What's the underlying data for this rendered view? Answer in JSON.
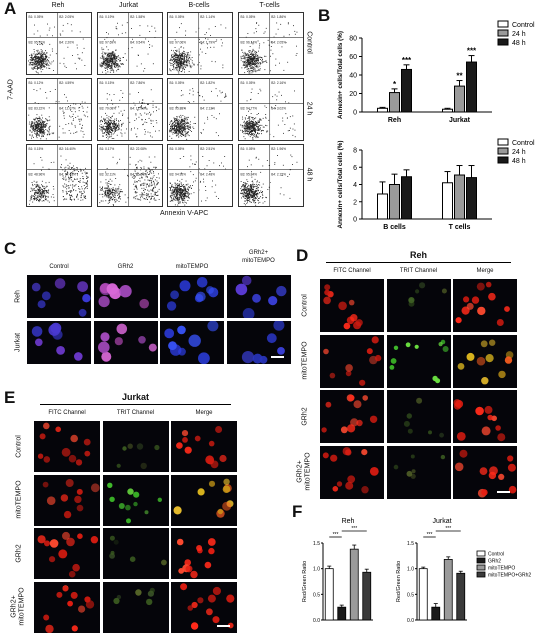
{
  "panel_letters": {
    "A": "A",
    "B": "B",
    "C": "C",
    "D": "D",
    "E": "E",
    "F": "F"
  },
  "panel_a": {
    "columns": [
      "Reh",
      "Jurkat",
      "B-cells",
      "T-cells"
    ],
    "rows": [
      "Control",
      "24 h",
      "48 h"
    ],
    "y_axis_label": "7-AAD",
    "x_axis_label": "Annexin V-APC",
    "quadrants": [
      [
        [
          "B1: 0.05%",
          "B2: 2.05%",
          "B3: 95.70%",
          "B4: 2.20%"
        ],
        [
          "B1: 0.19%",
          "B2: 1.58%",
          "B3: 97.69%",
          "B4: 0.54%"
        ],
        [
          "B1: 0.05%",
          "B2: 1.14%",
          "B3: 97.06%",
          "B4: 1.79%"
        ],
        [
          "B1: 0.05%",
          "B2: 1.86%",
          "B3: 96.14%",
          "B4: 2.05%"
        ]
      ],
      [
        [
          "B1: 0.12%",
          "B2: 4.59%",
          "B3: 83.22%",
          "B4: 12.07%"
        ],
        [
          "B1: 0.15%",
          "B2: 7.86%",
          "B3: 79.08%",
          "B4: 12.91%"
        ],
        [
          "B1: 0.05%",
          "B2: 1.82%",
          "B3: 95.88%",
          "B4: 2.12%"
        ],
        [
          "B1: 0.05%",
          "B2: 2.16%",
          "B3: 94.77%",
          "B4: 3.02%"
        ]
      ],
      [
        [
          "B1: 0.15%",
          "B2: 16.40%",
          "B3: 48.96%",
          "B4: 34.47%"
        ],
        [
          "B1: 0.17%",
          "B2: 22.08%",
          "B3: 32.11%",
          "B4: 45.64%"
        ],
        [
          "B1: 0.05%",
          "B2: 2.51%",
          "B3: 94.95%",
          "B4: 2.48%"
        ],
        [
          "B1: 0.05%",
          "B2: 1.96%",
          "B3: 95.84%",
          "B4: 2.15%"
        ]
      ]
    ]
  },
  "panel_b": {
    "chart_data": [
      {
        "type": "bar",
        "ylabel": "Annexin+ cells/Total cells (%)",
        "ylim": [
          0,
          80
        ],
        "yticks": [
          "0",
          "20",
          "40",
          "60",
          "80"
        ],
        "categories": [
          "Reh",
          "Jurkat"
        ],
        "series": [
          {
            "name": "Control",
            "values": [
              4,
              3
            ],
            "errors": [
              1,
              1
            ],
            "color": "#ffffff"
          },
          {
            "name": "24 h",
            "values": [
              21,
              28
            ],
            "errors": [
              4,
              6
            ],
            "color": "#9a9a9a"
          },
          {
            "name": "48 h",
            "values": [
              46,
              54
            ],
            "errors": [
              5,
              7
            ],
            "color": "#1a1a1a"
          }
        ],
        "significance": [
          [
            "",
            "*",
            "***"
          ],
          [
            "",
            "**",
            "***"
          ]
        ]
      },
      {
        "type": "bar",
        "ylabel": "Annexin+ cells/Total cells (%)",
        "ylim": [
          0,
          8
        ],
        "yticks": [
          "0",
          "2",
          "4",
          "6",
          "8"
        ],
        "categories": [
          "B cells",
          "T cells"
        ],
        "series": [
          {
            "name": "Control",
            "values": [
              2.9,
              4.2
            ],
            "errors": [
              1.4,
              1.3
            ],
            "color": "#ffffff"
          },
          {
            "name": "24 h",
            "values": [
              4.0,
              5.1
            ],
            "errors": [
              1.2,
              1.1
            ],
            "color": "#9a9a9a"
          },
          {
            "name": "48 h",
            "values": [
              4.9,
              4.8
            ],
            "errors": [
              0.8,
              1.4
            ],
            "color": "#1a1a1a"
          }
        ],
        "significance": [
          [
            "",
            "",
            ""
          ],
          [
            "",
            "",
            ""
          ]
        ]
      }
    ]
  },
  "panel_c": {
    "columns": [
      "Control",
      "GRh2",
      "mitoTEMPO",
      "GRh2+\nmitoTEMPO"
    ],
    "col_line1": [
      "Control",
      "GRh2",
      "mitoTEMPO",
      "GRh2+"
    ],
    "col_line2": [
      "",
      "",
      "",
      "mitoTEMPO"
    ],
    "rows": [
      "Reh",
      "Jurkat"
    ]
  },
  "panel_d": {
    "title": "Reh",
    "channels": [
      "FITC Channel",
      "TRIT Channel",
      "Merge"
    ],
    "rows": [
      "Control",
      "mitoTEMPO",
      "GRh2",
      "GRh2+\nmitoTEMPO"
    ]
  },
  "panel_e": {
    "title": "Jurkat",
    "channels": [
      "FITC Channel",
      "TRIT Channel",
      "Merge"
    ],
    "rows": [
      "Control",
      "mitoTEMPO",
      "GRh2",
      "GRh2+\nmitoTEMPO"
    ]
  },
  "panel_f": {
    "chart_data": [
      {
        "type": "bar",
        "title": "Reh",
        "ylabel": "Red/Green Ratio",
        "ylim": [
          0,
          1.5
        ],
        "yticks": [
          "0.0",
          "0.5",
          "1.0",
          "1.5"
        ],
        "categories": [
          "Control",
          "GRh2",
          "mitoTEMPO",
          "mitoTEMPO+GRh2"
        ],
        "values": [
          1.0,
          0.25,
          1.38,
          0.93
        ],
        "errors": [
          0.05,
          0.04,
          0.08,
          0.06
        ],
        "significance": [
          "***",
          "***"
        ]
      },
      {
        "type": "bar",
        "title": "Jurkat",
        "ylabel": "Red/Green Ratio",
        "ylim": [
          0,
          1.5
        ],
        "yticks": [
          "0.0",
          "0.5",
          "1.0",
          "1.5"
        ],
        "categories": [
          "Control",
          "GRh2",
          "mitoTEMPO",
          "mitoTEMPO+GRh2"
        ],
        "values": [
          1.0,
          0.25,
          1.18,
          0.91
        ],
        "errors": [
          0.03,
          0.07,
          0.05,
          0.04
        ],
        "significance": [
          "***",
          "***"
        ]
      }
    ],
    "legend": [
      "Control",
      "GRh2",
      "mitoTEMPO",
      "mitoTEMPO+GRh2"
    ],
    "colors": [
      "#ffffff",
      "#1a1a1a",
      "#9a9a9a",
      "#3a3a3a"
    ]
  },
  "scale_bar_color": "#ffffff"
}
